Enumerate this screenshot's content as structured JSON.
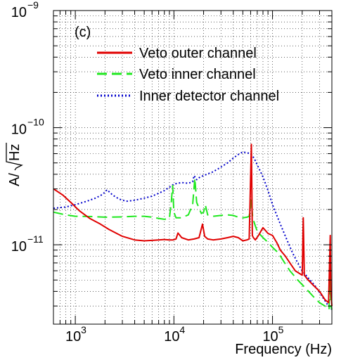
{
  "chart_data": {
    "type": "line",
    "panel_label": "(c)",
    "xlabel": "Frequency (Hz)",
    "ylabel_prefix": "A/",
    "ylabel_radicand": "Hz",
    "x_scale": "log",
    "y_scale": "log",
    "xlim": [
      600,
      400000
    ],
    "ylim": [
      2.1e-12,
      1e-09
    ],
    "grid": true,
    "legend_position": "top-center",
    "x_ticks": [
      {
        "value": 1000,
        "base": "10",
        "exp": "3"
      },
      {
        "value": 10000,
        "base": "10",
        "exp": "4"
      },
      {
        "value": 100000,
        "base": "10",
        "exp": "5"
      }
    ],
    "y_ticks": [
      {
        "value": 1e-11,
        "base": "10",
        "exp": "−11"
      },
      {
        "value": 1e-10,
        "base": "10",
        "exp": "−10"
      },
      {
        "value": 1e-09,
        "base": "10",
        "exp": "−9"
      }
    ],
    "series": [
      {
        "name": "Veto outer channel",
        "color": "#e00000",
        "dash": "solid",
        "x": [
          600,
          750,
          900,
          1100,
          1400,
          1800,
          2200,
          3000,
          4000,
          5000,
          6000,
          7000,
          8000,
          9000,
          9800,
          10500,
          11000,
          12000,
          14000,
          16000,
          18000,
          19500,
          20500,
          22000,
          25000,
          30000,
          35000,
          40000,
          45000,
          50000,
          55000,
          58000,
          61000,
          62500,
          64000,
          67000,
          72000,
          80000,
          90000,
          100000,
          110000,
          120000,
          135000,
          150000,
          170000,
          200000,
          205000,
          210000,
          230000,
          260000,
          300000,
          340000,
          370000,
          385000,
          390000,
          400000
        ],
        "y": [
          3e-11,
          2.65e-11,
          2.3e-11,
          1.95e-11,
          1.68e-11,
          1.5e-11,
          1.35e-11,
          1.18e-11,
          1.1e-11,
          1.08e-11,
          1.09e-11,
          1.1e-11,
          1.11e-11,
          1.1e-11,
          1.1e-11,
          1.12e-11,
          1.26e-11,
          1.15e-11,
          1.1e-11,
          1.12e-11,
          1.15e-11,
          1.5e-11,
          1.18e-11,
          1.12e-11,
          1.1e-11,
          1.12e-11,
          1.15e-11,
          1.18e-11,
          1.15e-11,
          1.08e-11,
          1.1e-11,
          1.12e-11,
          7.2e-11,
          1.2e-11,
          1.15e-11,
          1.1e-11,
          1.2e-11,
          1.4e-11,
          1.25e-11,
          1.2e-11,
          1.05e-11,
          9e-12,
          8e-12,
          7e-12,
          6e-12,
          5.5e-12,
          1.7e-11,
          5.5e-12,
          5e-12,
          4.5e-12,
          4e-12,
          3.4e-12,
          3.2e-12,
          1.2e-11,
          4e-12,
          3e-12
        ]
      },
      {
        "name": "Veto inner channel",
        "color": "#1fe81f",
        "dash": "long-dash",
        "x": [
          600,
          800,
          1000,
          1500,
          2000,
          3000,
          4000,
          5000,
          6000,
          7000,
          8000,
          9000,
          9400,
          9700,
          10000,
          10500,
          12000,
          14000,
          15500,
          16300,
          17000,
          18000,
          19000,
          20000,
          20800,
          22000,
          25000,
          30000,
          35000,
          40000,
          45000,
          50000,
          55000,
          58000,
          61000,
          63000,
          66000,
          70000,
          80000,
          90000,
          100000,
          115000,
          130000,
          150000,
          180000,
          220000,
          260000,
          300000,
          340000,
          375000,
          380000,
          390000,
          400000
        ],
        "y": [
          1.9e-11,
          1.8e-11,
          1.75e-11,
          1.74e-11,
          1.72e-11,
          1.73e-11,
          1.75e-11,
          1.75e-11,
          1.72e-11,
          1.68e-11,
          1.65e-11,
          1.68e-11,
          2.3e-11,
          3.2e-11,
          1.9e-11,
          1.7e-11,
          1.7e-11,
          1.8e-11,
          2.2e-11,
          3.7e-11,
          2.3e-11,
          2.05e-11,
          1.85e-11,
          1.9e-11,
          2.2e-11,
          1.8e-11,
          1.75e-11,
          1.78e-11,
          1.8e-11,
          1.78e-11,
          1.72e-11,
          1.7e-11,
          1.72e-11,
          1.75e-11,
          2.4e-11,
          1.7e-11,
          1.5e-11,
          1.3e-11,
          1.15e-11,
          1.05e-11,
          9.5e-12,
          8.5e-12,
          7.2e-12,
          6e-12,
          5e-12,
          4.2e-12,
          3.6e-12,
          3.2e-12,
          3e-12,
          2.8e-12,
          7e-12,
          3e-12,
          2.8e-12
        ]
      },
      {
        "name": "Inner detector channel",
        "color": "#0000cc",
        "dash": "dotted",
        "x": [
          600,
          800,
          1000,
          1300,
          1600,
          1900,
          2100,
          2400,
          2800,
          3300,
          4000,
          5000,
          6000,
          7000,
          8000,
          9000,
          10000,
          12000,
          14000,
          15500,
          16000,
          17000,
          18500,
          20000,
          25000,
          30000,
          35000,
          40000,
          45000,
          50000,
          55000,
          60000,
          65000,
          70000,
          80000,
          90000,
          100000,
          120000,
          140000,
          160000,
          180000,
          200000,
          240000,
          280000,
          320000,
          360000,
          400000
        ],
        "y": [
          2.05e-11,
          2.1e-11,
          2.2e-11,
          2.35e-11,
          2.5e-11,
          2.7e-11,
          2.95e-11,
          2.65e-11,
          2.45e-11,
          2.35e-11,
          2.4e-11,
          2.5e-11,
          2.6e-11,
          2.75e-11,
          2.9e-11,
          3.1e-11,
          3.3e-11,
          3.4e-11,
          3.35e-11,
          3.45e-11,
          3.9e-11,
          3.6e-11,
          3.8e-11,
          3.9e-11,
          4.2e-11,
          4.6e-11,
          5e-11,
          5.5e-11,
          5.9e-11,
          6.2e-11,
          6.1e-11,
          6e-11,
          5.5e-11,
          4.8e-11,
          3.8e-11,
          2.9e-11,
          2.2e-11,
          1.5e-11,
          1.1e-11,
          8.5e-12,
          7e-12,
          6e-12,
          5e-12,
          4.3e-12,
          3.6e-12,
          3.1e-12,
          2.8e-12
        ]
      }
    ]
  }
}
